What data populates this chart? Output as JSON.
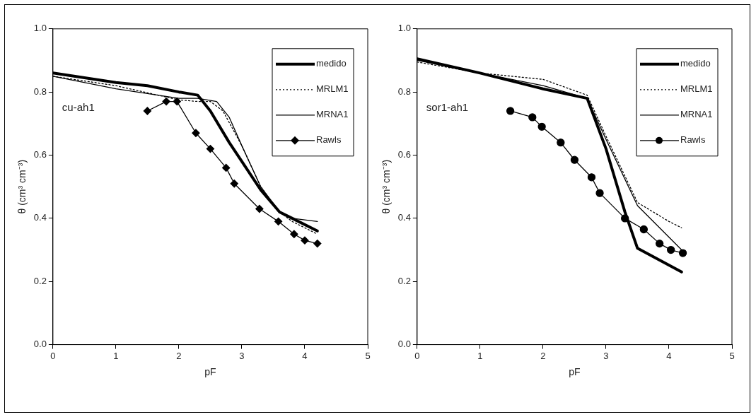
{
  "chart_data": [
    {
      "type": "line",
      "xlabel": "pF",
      "ylabel": "θ (cm³ cm⁻³)",
      "annotations": [
        "cu-ah1"
      ],
      "xlim": [
        0,
        5
      ],
      "xticks": [
        0,
        1,
        2,
        3,
        4,
        5
      ],
      "ylim": [
        0,
        1
      ],
      "yticks": [
        {
          "value": 0,
          "label": "0.0"
        },
        {
          "value": 0.2,
          "label": "0.2"
        },
        {
          "value": 0.4,
          "label": "0.4"
        },
        {
          "value": 0.6,
          "label": "0.6"
        },
        {
          "value": 0.8,
          "label": "0.8"
        },
        {
          "value": 1,
          "label": "1.0"
        }
      ],
      "grid": false,
      "legend": "top right",
      "series": [
        {
          "name": "medido",
          "color": "#000000",
          "line_style": "solid",
          "marker": "none",
          "x": [
            0,
            1,
            1.5,
            2,
            2.3,
            2.5,
            2.8,
            3,
            3.3,
            3.6,
            3.8,
            4.2
          ],
          "values": [
            0.86,
            0.83,
            0.82,
            0.8,
            0.79,
            0.74,
            0.64,
            0.58,
            0.49,
            0.42,
            0.4,
            0.36
          ]
        },
        {
          "name": "MRLM1",
          "color": "#000000",
          "line_style": "dotted",
          "marker": "none",
          "x": [
            0,
            1,
            2,
            2.3,
            2.5,
            2.7,
            3,
            3.3,
            3.6,
            3.8,
            4.2
          ],
          "values": [
            0.85,
            0.82,
            0.775,
            0.77,
            0.77,
            0.74,
            0.63,
            0.5,
            0.42,
            0.39,
            0.35
          ]
        },
        {
          "name": "MRNA1",
          "color": "#000000",
          "line_style": "solid",
          "marker": "none",
          "x": [
            0,
            1,
            2,
            2.3,
            2.6,
            2.8,
            3,
            3.3,
            3.6,
            3.8,
            4.2
          ],
          "values": [
            0.85,
            0.81,
            0.78,
            0.78,
            0.77,
            0.72,
            0.63,
            0.5,
            0.42,
            0.4,
            0.39
          ]
        },
        {
          "name": "Rawls",
          "color": "#000000",
          "line_style": "solid",
          "marker": "diamond",
          "x": [
            1.5,
            1.8,
            1.97,
            2.27,
            2.5,
            2.75,
            2.88,
            3.28,
            3.58,
            3.83,
            4,
            4.2
          ],
          "values": [
            0.74,
            0.77,
            0.77,
            0.67,
            0.62,
            0.56,
            0.51,
            0.43,
            0.39,
            0.35,
            0.33,
            0.32
          ]
        }
      ]
    },
    {
      "type": "line",
      "xlabel": "pF",
      "ylabel": "θ (cm³ cm⁻³)",
      "annotations": [
        "sor1-ah1"
      ],
      "xlim": [
        0,
        5
      ],
      "xticks": [
        0,
        1,
        2,
        3,
        4,
        5
      ],
      "ylim": [
        0,
        1
      ],
      "yticks": [
        {
          "value": 0,
          "label": "0.0"
        },
        {
          "value": 0.2,
          "label": "0.2"
        },
        {
          "value": 0.4,
          "label": "0.4"
        },
        {
          "value": 0.6,
          "label": "0.6"
        },
        {
          "value": 0.8,
          "label": "0.8"
        },
        {
          "value": 1,
          "label": "1.0"
        }
      ],
      "grid": false,
      "legend": "top right",
      "series": [
        {
          "name": "medido",
          "color": "#000000",
          "line_style": "solid",
          "marker": "none",
          "x": [
            0,
            1,
            2,
            2.7,
            3,
            3.3,
            3.5,
            4.2
          ],
          "values": [
            0.905,
            0.86,
            0.81,
            0.78,
            0.62,
            0.42,
            0.305,
            0.23
          ]
        },
        {
          "name": "MRLM1",
          "color": "#000000",
          "line_style": "dotted",
          "marker": "none",
          "x": [
            0,
            1,
            2,
            2.7,
            3,
            3.5,
            4,
            4.2
          ],
          "values": [
            0.895,
            0.86,
            0.84,
            0.79,
            0.66,
            0.45,
            0.39,
            0.37
          ]
        },
        {
          "name": "MRNA1",
          "color": "#000000",
          "line_style": "solid",
          "marker": "none",
          "x": [
            0,
            1,
            2,
            2.7,
            3,
            3.5,
            4.2
          ],
          "values": [
            0.9,
            0.86,
            0.82,
            0.78,
            0.65,
            0.44,
            0.3
          ]
        },
        {
          "name": "Rawls",
          "color": "#000000",
          "line_style": "solid",
          "marker": "circle",
          "x": [
            1.48,
            1.83,
            1.98,
            2.28,
            2.5,
            2.77,
            2.9,
            3.3,
            3.6,
            3.85,
            4.03,
            4.22
          ],
          "values": [
            0.74,
            0.72,
            0.69,
            0.64,
            0.585,
            0.53,
            0.48,
            0.4,
            0.365,
            0.32,
            0.3,
            0.29
          ]
        }
      ]
    }
  ]
}
